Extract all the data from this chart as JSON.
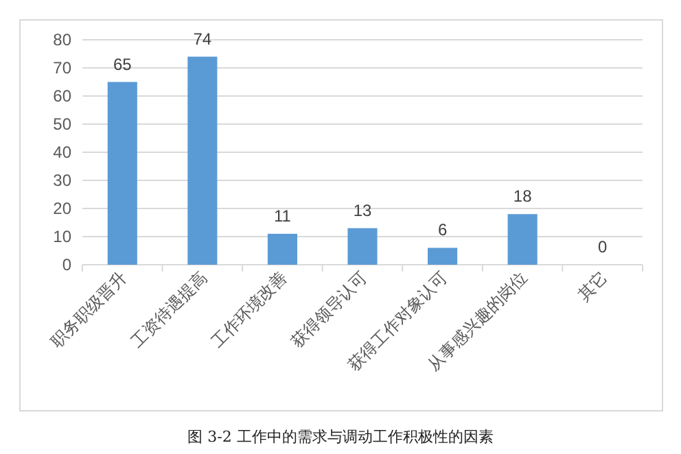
{
  "chart_data": {
    "type": "bar",
    "categories": [
      "职务职级晋升",
      "工资待遇提高",
      "工作环境改善",
      "获得领导认可",
      "获得工作对象认可",
      "从事感兴趣的岗位",
      "其它"
    ],
    "values": [
      65,
      74,
      11,
      13,
      6,
      18,
      0
    ],
    "color": "#5b9bd5",
    "ylim": [
      0,
      80
    ],
    "yticks": [
      0,
      10,
      20,
      30,
      40,
      50,
      60,
      70,
      80
    ],
    "grid": "y",
    "data_labels": true,
    "annotations": [
      "图 3-2  工作中的需求与调动工作积极性的因素"
    ]
  }
}
